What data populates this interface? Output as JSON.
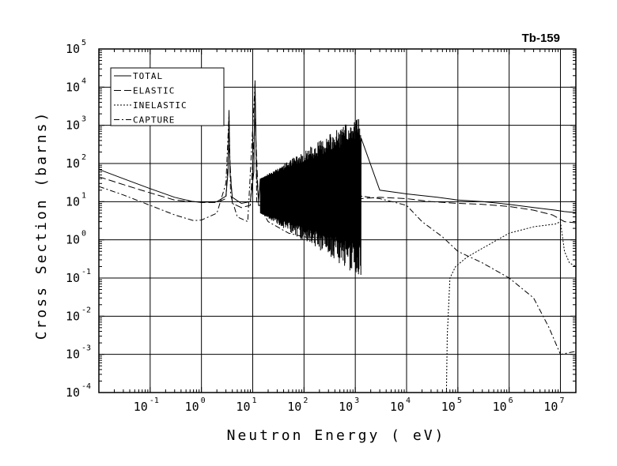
{
  "chart_data": {
    "type": "line",
    "title": "Tb-159",
    "xlabel": "Neutron Energy ( eV)",
    "ylabel": "Cross Section (barns)",
    "x_scale": "log",
    "y_scale": "log",
    "xlim": [
      0.01,
      20000000
    ],
    "ylim": [
      0.0001,
      100000
    ],
    "grid": true,
    "legend_position": "top-left",
    "x_ticks": [
      {
        "base": "10",
        "exp": "-1",
        "value": 0.1
      },
      {
        "base": "10",
        "exp": "0",
        "value": 1
      },
      {
        "base": "10",
        "exp": "1",
        "value": 10
      },
      {
        "base": "10",
        "exp": "2",
        "value": 100
      },
      {
        "base": "10",
        "exp": "3",
        "value": 1000
      },
      {
        "base": "10",
        "exp": "4",
        "value": 10000
      },
      {
        "base": "10",
        "exp": "5",
        "value": 100000
      },
      {
        "base": "10",
        "exp": "6",
        "value": 1000000
      },
      {
        "base": "10",
        "exp": "7",
        "value": 10000000
      }
    ],
    "y_ticks": [
      {
        "base": "10",
        "exp": "-4",
        "value": 0.0001
      },
      {
        "base": "10",
        "exp": "-3",
        "value": 0.001
      },
      {
        "base": "10",
        "exp": "-2",
        "value": 0.01
      },
      {
        "base": "10",
        "exp": "-1",
        "value": 0.1
      },
      {
        "base": "10",
        "exp": "0",
        "value": 1
      },
      {
        "base": "10",
        "exp": "1",
        "value": 10
      },
      {
        "base": "10",
        "exp": "2",
        "value": 100
      },
      {
        "base": "10",
        "exp": "3",
        "value": 1000
      },
      {
        "base": "10",
        "exp": "4",
        "value": 10000
      },
      {
        "base": "10",
        "exp": "5",
        "value": 100000
      }
    ],
    "series": [
      {
        "name": "TOTAL",
        "dash": "solid",
        "points": [
          [
            0.01,
            70
          ],
          [
            0.03,
            40
          ],
          [
            0.1,
            22
          ],
          [
            0.3,
            13
          ],
          [
            0.7,
            10
          ],
          [
            1.0,
            9.6
          ],
          [
            2.0,
            10
          ],
          [
            3.0,
            14
          ],
          [
            3.3,
            60
          ],
          [
            3.45,
            2500
          ],
          [
            3.6,
            60
          ],
          [
            4.0,
            13
          ],
          [
            6,
            9
          ],
          [
            9,
            10
          ],
          [
            10.5,
            60
          ],
          [
            11.1,
            15000
          ],
          [
            11.8,
            60
          ],
          [
            13,
            10
          ],
          [
            20,
            10
          ],
          [
            40,
            12
          ],
          [
            100,
            12
          ],
          [
            400,
            12
          ],
          [
            1200,
            12
          ],
          [
            1300,
            16
          ],
          [
            3000,
            20
          ],
          [
            10000,
            16
          ],
          [
            40000,
            13
          ],
          [
            100000,
            11
          ],
          [
            300000,
            10
          ],
          [
            1000000,
            8.5
          ],
          [
            3000000,
            7
          ],
          [
            8000000,
            6
          ],
          [
            12000000,
            5.5
          ],
          [
            20000000,
            5.2
          ]
        ]
      },
      {
        "name": "ELASTIC",
        "dash": "long-dash",
        "points": [
          [
            0.01,
            45
          ],
          [
            0.03,
            28
          ],
          [
            0.1,
            17
          ],
          [
            0.3,
            11
          ],
          [
            0.7,
            10
          ],
          [
            1.0,
            9.5
          ],
          [
            2.0,
            9.5
          ],
          [
            3.0,
            12
          ],
          [
            3.45,
            300
          ],
          [
            4.0,
            9
          ],
          [
            6,
            7
          ],
          [
            9,
            8
          ],
          [
            11.1,
            1500
          ],
          [
            13,
            8
          ],
          [
            20,
            8
          ],
          [
            100,
            10
          ],
          [
            1000,
            11
          ],
          [
            1300,
            12
          ],
          [
            3000,
            13
          ],
          [
            10000,
            12
          ],
          [
            30000,
            10
          ],
          [
            100000,
            9
          ],
          [
            300000,
            8.5
          ],
          [
            1000000,
            7.5
          ],
          [
            3000000,
            6
          ],
          [
            7000000,
            4.5
          ],
          [
            12000000,
            3
          ],
          [
            20000000,
            2.8
          ]
        ]
      },
      {
        "name": "INELASTIC",
        "dash": "dotted",
        "points": [
          [
            60000,
            0.0001
          ],
          [
            62000,
            0.003
          ],
          [
            70000,
            0.1
          ],
          [
            90000,
            0.2
          ],
          [
            150000,
            0.35
          ],
          [
            300000,
            0.6
          ],
          [
            1000000,
            1.5
          ],
          [
            3000000,
            2.2
          ],
          [
            8000000,
            2.6
          ],
          [
            10000000,
            3.0
          ],
          [
            12000000,
            0.5
          ],
          [
            15000000,
            0.25
          ],
          [
            20000000,
            0.2
          ]
        ]
      },
      {
        "name": "CAPTURE",
        "dash": "dash-dot",
        "points": [
          [
            0.01,
            25
          ],
          [
            0.03,
            15
          ],
          [
            0.1,
            8
          ],
          [
            0.3,
            4.5
          ],
          [
            0.7,
            3.2
          ],
          [
            1.0,
            3.3
          ],
          [
            2.0,
            5
          ],
          [
            3.0,
            30
          ],
          [
            3.45,
            2000
          ],
          [
            3.7,
            15
          ],
          [
            5,
            4
          ],
          [
            8,
            3
          ],
          [
            11.1,
            12000
          ],
          [
            12,
            10
          ],
          [
            20,
            3
          ],
          [
            50,
            1.5
          ],
          [
            100,
            1.2
          ],
          [
            1000,
            1.0
          ],
          [
            1300,
            14
          ],
          [
            3000,
            12
          ],
          [
            10000,
            8
          ],
          [
            20000,
            3
          ],
          [
            50000,
            1.2
          ],
          [
            100000,
            0.5
          ],
          [
            300000,
            0.25
          ],
          [
            1000000,
            0.1
          ],
          [
            3000000,
            0.03
          ],
          [
            6000000,
            0.005
          ],
          [
            10000000,
            0.001
          ],
          [
            20000000,
            0.0012
          ]
        ]
      }
    ],
    "resonance_region": {
      "series": "TOTAL",
      "x_range": [
        14,
        1300
      ],
      "description_values": {
        "upper_envelope_max": 2000,
        "lower_envelope_min": 0.1
      }
    }
  }
}
